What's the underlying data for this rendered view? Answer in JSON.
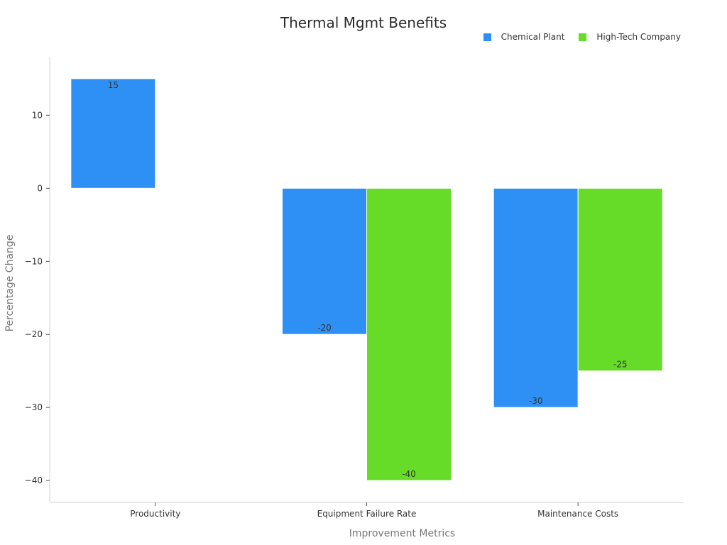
{
  "chart_data": {
    "type": "bar",
    "title": "Thermal Mgmt Benefits",
    "xlabel": "Improvement Metrics",
    "ylabel": "Percentage Change",
    "categories": [
      "Productivity",
      "Equipment Failure Rate",
      "Maintenance Costs"
    ],
    "series": [
      {
        "name": "Chemical Plant",
        "color": "#2e90f5",
        "values": [
          15,
          -20,
          -30
        ]
      },
      {
        "name": "High-Tech Company",
        "color": "#66dc28",
        "values": [
          null,
          -40,
          -25
        ]
      }
    ],
    "yticks": [
      10,
      0,
      -10,
      -20,
      -30,
      -40
    ],
    "ytick_labels": [
      "10",
      "0",
      "−10",
      "−20",
      "−30",
      "−40"
    ],
    "ylim": [
      -43,
      18
    ],
    "grid": false,
    "legend_position": "top-right",
    "data_labels": true
  }
}
